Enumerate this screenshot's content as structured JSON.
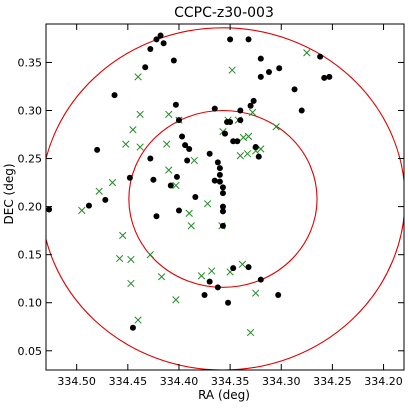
{
  "chart_data": {
    "type": "scatter",
    "title": "CCPC-z30-003",
    "xlabel": "RA (deg)",
    "ylabel": "DEC (deg)",
    "xlim": [
      334.53,
      334.18
    ],
    "ylim": [
      0.03,
      0.39
    ],
    "x_inverted": true,
    "x_ticks": [
      334.5,
      334.45,
      334.4,
      334.35,
      334.3,
      334.25,
      334.2
    ],
    "x_tick_labels": [
      "334.50",
      "334.45",
      "334.40",
      "334.35",
      "334.30",
      "334.25",
      "334.20"
    ],
    "y_ticks": [
      0.05,
      0.1,
      0.15,
      0.2,
      0.25,
      0.3,
      0.35
    ],
    "y_tick_labels": [
      "0.05",
      "0.10",
      "0.15",
      "0.20",
      "0.25",
      "0.30",
      "0.35"
    ],
    "grid": false,
    "legend": "none",
    "colors": {
      "dots": "#000000",
      "crosses": "#228b22",
      "circles": "#e00000"
    },
    "circles": [
      {
        "center_ra": 334.357,
        "center_dec": 0.208,
        "radius_deg": 0.178
      },
      {
        "center_ra": 334.357,
        "center_dec": 0.208,
        "radius_deg": 0.092
      }
    ],
    "series": [
      {
        "marker": "dot",
        "points": [
          [
            334.527,
            0.197
          ],
          [
            334.488,
            0.201
          ],
          [
            334.472,
            0.207
          ],
          [
            334.48,
            0.259
          ],
          [
            334.463,
            0.316
          ],
          [
            334.448,
            0.23
          ],
          [
            334.433,
            0.345
          ],
          [
            334.428,
            0.364
          ],
          [
            334.422,
            0.374
          ],
          [
            334.418,
            0.378
          ],
          [
            334.415,
            0.37
          ],
          [
            334.405,
            0.352
          ],
          [
            334.428,
            0.25
          ],
          [
            334.425,
            0.228
          ],
          [
            334.422,
            0.19
          ],
          [
            334.403,
            0.306
          ],
          [
            334.4,
            0.29
          ],
          [
            334.397,
            0.273
          ],
          [
            334.394,
            0.264
          ],
          [
            334.392,
            0.248
          ],
          [
            334.402,
            0.231
          ],
          [
            334.408,
            0.222
          ],
          [
            334.4,
            0.196
          ],
          [
            334.39,
            0.26
          ],
          [
            334.384,
            0.21
          ],
          [
            334.37,
            0.255
          ],
          [
            334.365,
            0.302
          ],
          [
            334.365,
            0.227
          ],
          [
            334.362,
            0.246
          ],
          [
            334.36,
            0.24
          ],
          [
            334.36,
            0.233
          ],
          [
            334.36,
            0.226
          ],
          [
            334.357,
            0.22
          ],
          [
            334.357,
            0.214
          ],
          [
            334.357,
            0.2
          ],
          [
            334.357,
            0.195
          ],
          [
            334.357,
            0.18
          ],
          [
            334.355,
            0.276
          ],
          [
            334.353,
            0.288
          ],
          [
            334.35,
            0.288
          ],
          [
            334.35,
            0.374
          ],
          [
            334.347,
            0.268
          ],
          [
            334.343,
            0.268
          ],
          [
            334.34,
            0.3
          ],
          [
            334.34,
            0.29
          ],
          [
            334.332,
            0.374
          ],
          [
            334.33,
            0.305
          ],
          [
            334.327,
            0.31
          ],
          [
            334.325,
            0.262
          ],
          [
            334.322,
            0.252
          ],
          [
            334.32,
            0.354
          ],
          [
            334.32,
            0.335
          ],
          [
            334.312,
            0.34
          ],
          [
            334.302,
            0.344
          ],
          [
            334.287,
            0.322
          ],
          [
            334.28,
            0.3
          ],
          [
            334.262,
            0.356
          ],
          [
            334.258,
            0.334
          ],
          [
            334.253,
            0.335
          ],
          [
            334.445,
            0.074
          ],
          [
            334.375,
            0.108
          ],
          [
            334.37,
            0.122
          ],
          [
            334.362,
            0.116
          ],
          [
            334.352,
            0.1
          ],
          [
            334.347,
            0.136
          ],
          [
            334.332,
            0.137
          ],
          [
            334.32,
            0.124
          ],
          [
            334.303,
            0.108
          ]
        ]
      },
      {
        "marker": "cross",
        "points": [
          [
            334.495,
            0.196
          ],
          [
            334.478,
            0.216
          ],
          [
            334.465,
            0.225
          ],
          [
            334.452,
            0.265
          ],
          [
            334.445,
            0.28
          ],
          [
            334.438,
            0.262
          ],
          [
            334.44,
            0.335
          ],
          [
            334.438,
            0.296
          ],
          [
            334.41,
            0.296
          ],
          [
            334.455,
            0.17
          ],
          [
            334.458,
            0.146
          ],
          [
            334.447,
            0.145
          ],
          [
            334.447,
            0.12
          ],
          [
            334.44,
            0.082
          ],
          [
            334.428,
            0.15
          ],
          [
            334.417,
            0.127
          ],
          [
            334.403,
            0.103
          ],
          [
            334.39,
            0.193
          ],
          [
            334.388,
            0.18
          ],
          [
            334.403,
            0.222
          ],
          [
            334.41,
            0.238
          ],
          [
            334.412,
            0.265
          ],
          [
            334.4,
            0.29
          ],
          [
            334.385,
            0.248
          ],
          [
            334.372,
            0.203
          ],
          [
            334.378,
            0.128
          ],
          [
            334.368,
            0.133
          ],
          [
            334.358,
            0.18
          ],
          [
            334.357,
            0.278
          ],
          [
            334.352,
            0.29
          ],
          [
            334.348,
            0.342
          ],
          [
            334.342,
            0.29
          ],
          [
            334.34,
            0.253
          ],
          [
            334.337,
            0.272
          ],
          [
            334.332,
            0.273
          ],
          [
            334.333,
            0.255
          ],
          [
            334.328,
            0.298
          ],
          [
            334.325,
            0.258
          ],
          [
            334.32,
            0.26
          ],
          [
            334.305,
            0.283
          ],
          [
            334.275,
            0.36
          ],
          [
            334.33,
            0.069
          ],
          [
            334.325,
            0.11
          ],
          [
            334.35,
            0.132
          ],
          [
            334.338,
            0.14
          ]
        ]
      }
    ]
  }
}
